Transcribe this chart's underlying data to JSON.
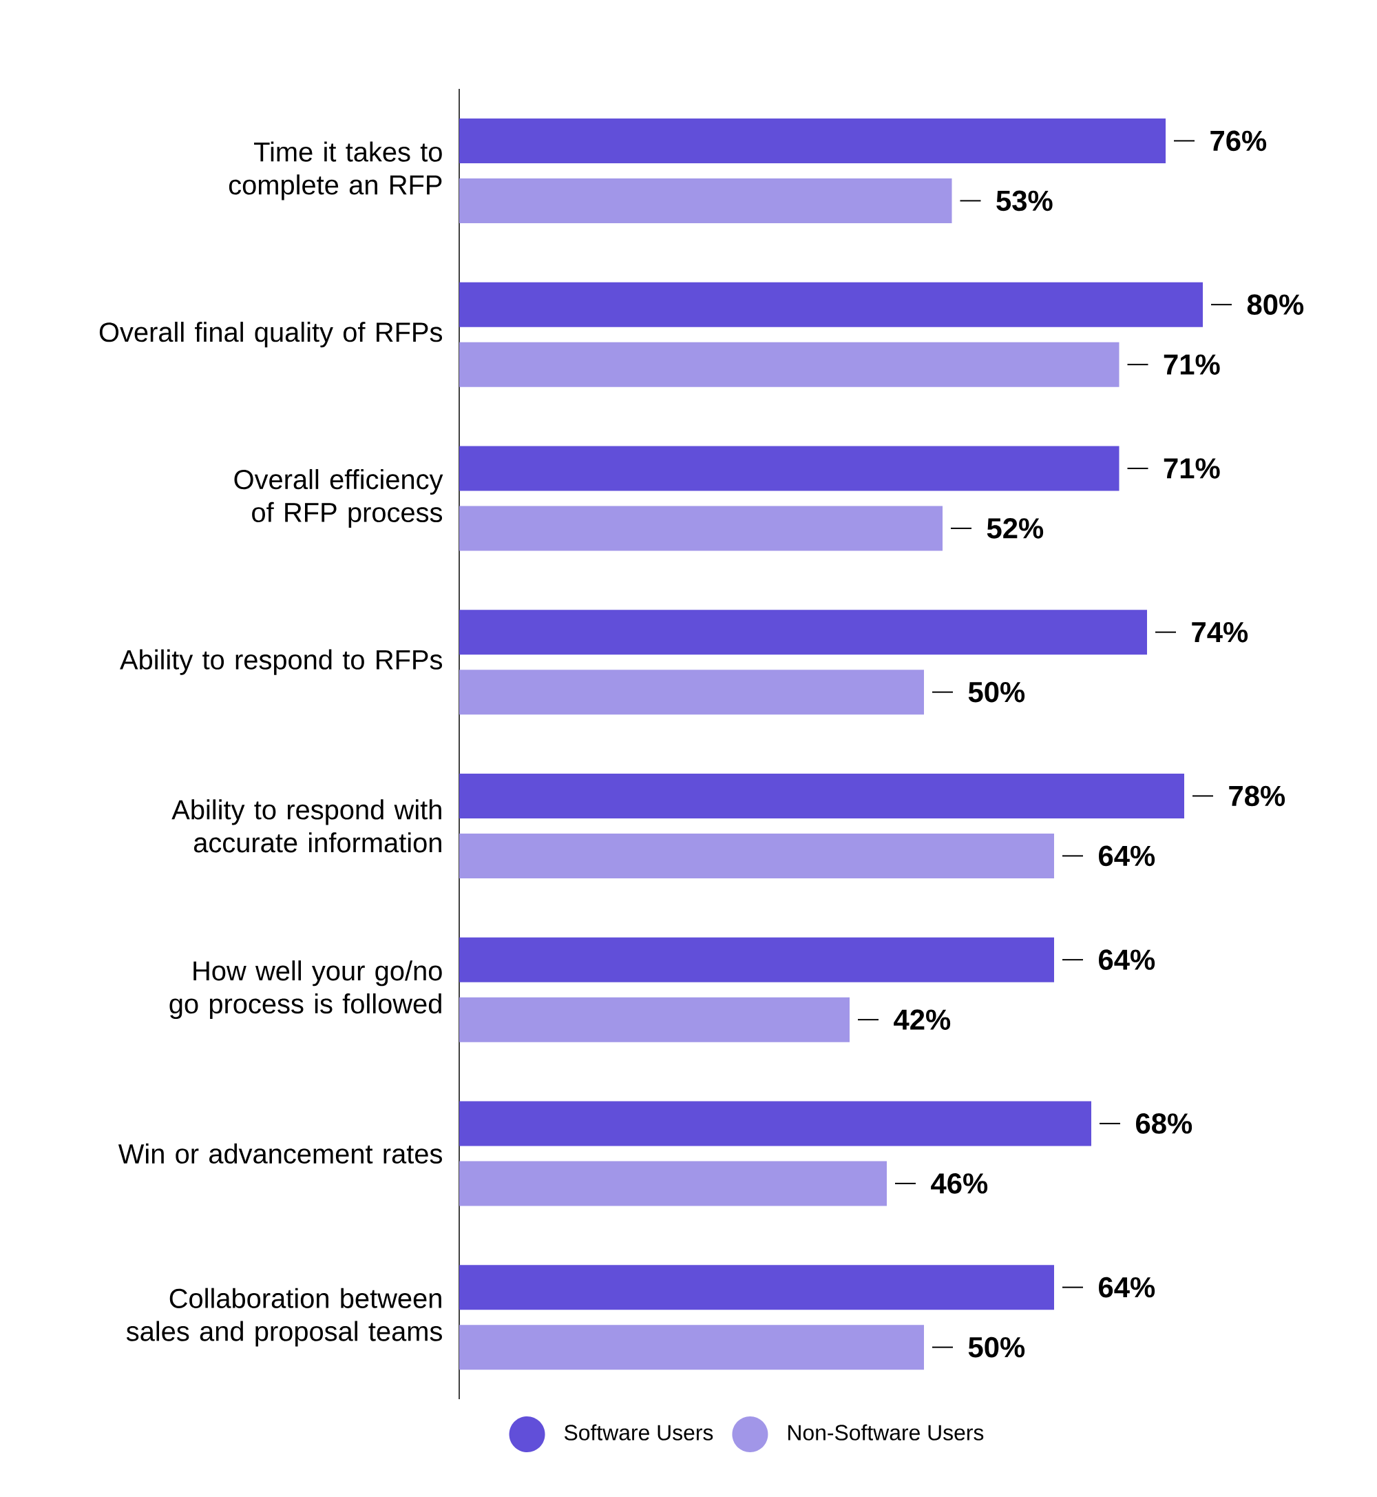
{
  "chart_data": {
    "type": "bar",
    "orientation": "horizontal",
    "categories": [
      "Time it takes to complete an RFP",
      "Overall final quality of RFPs",
      "Overall efficiency of RFP process",
      "Ability to respond to RFPs",
      "Ability to respond with accurate information",
      "How well your go/no go process is followed",
      "Win or advancement rates",
      "Collaboration between sales and proposal teams"
    ],
    "series": [
      {
        "name": "Software Users",
        "color": "#614fd9",
        "values": [
          76,
          80,
          71,
          74,
          78,
          64,
          68,
          64
        ],
        "value_labels": [
          "76%",
          "80%",
          "71%",
          "74%",
          "78%",
          "64%",
          "68%",
          "64%"
        ]
      },
      {
        "name": "Non-Software Users",
        "color": "#a196e8",
        "values": [
          53,
          71,
          52,
          50,
          64,
          42,
          46,
          50
        ],
        "value_labels": [
          "53%",
          "71%",
          "52%",
          "50%",
          "64%",
          "42%",
          "46%",
          "50%"
        ]
      }
    ],
    "legend": "bottom"
  }
}
